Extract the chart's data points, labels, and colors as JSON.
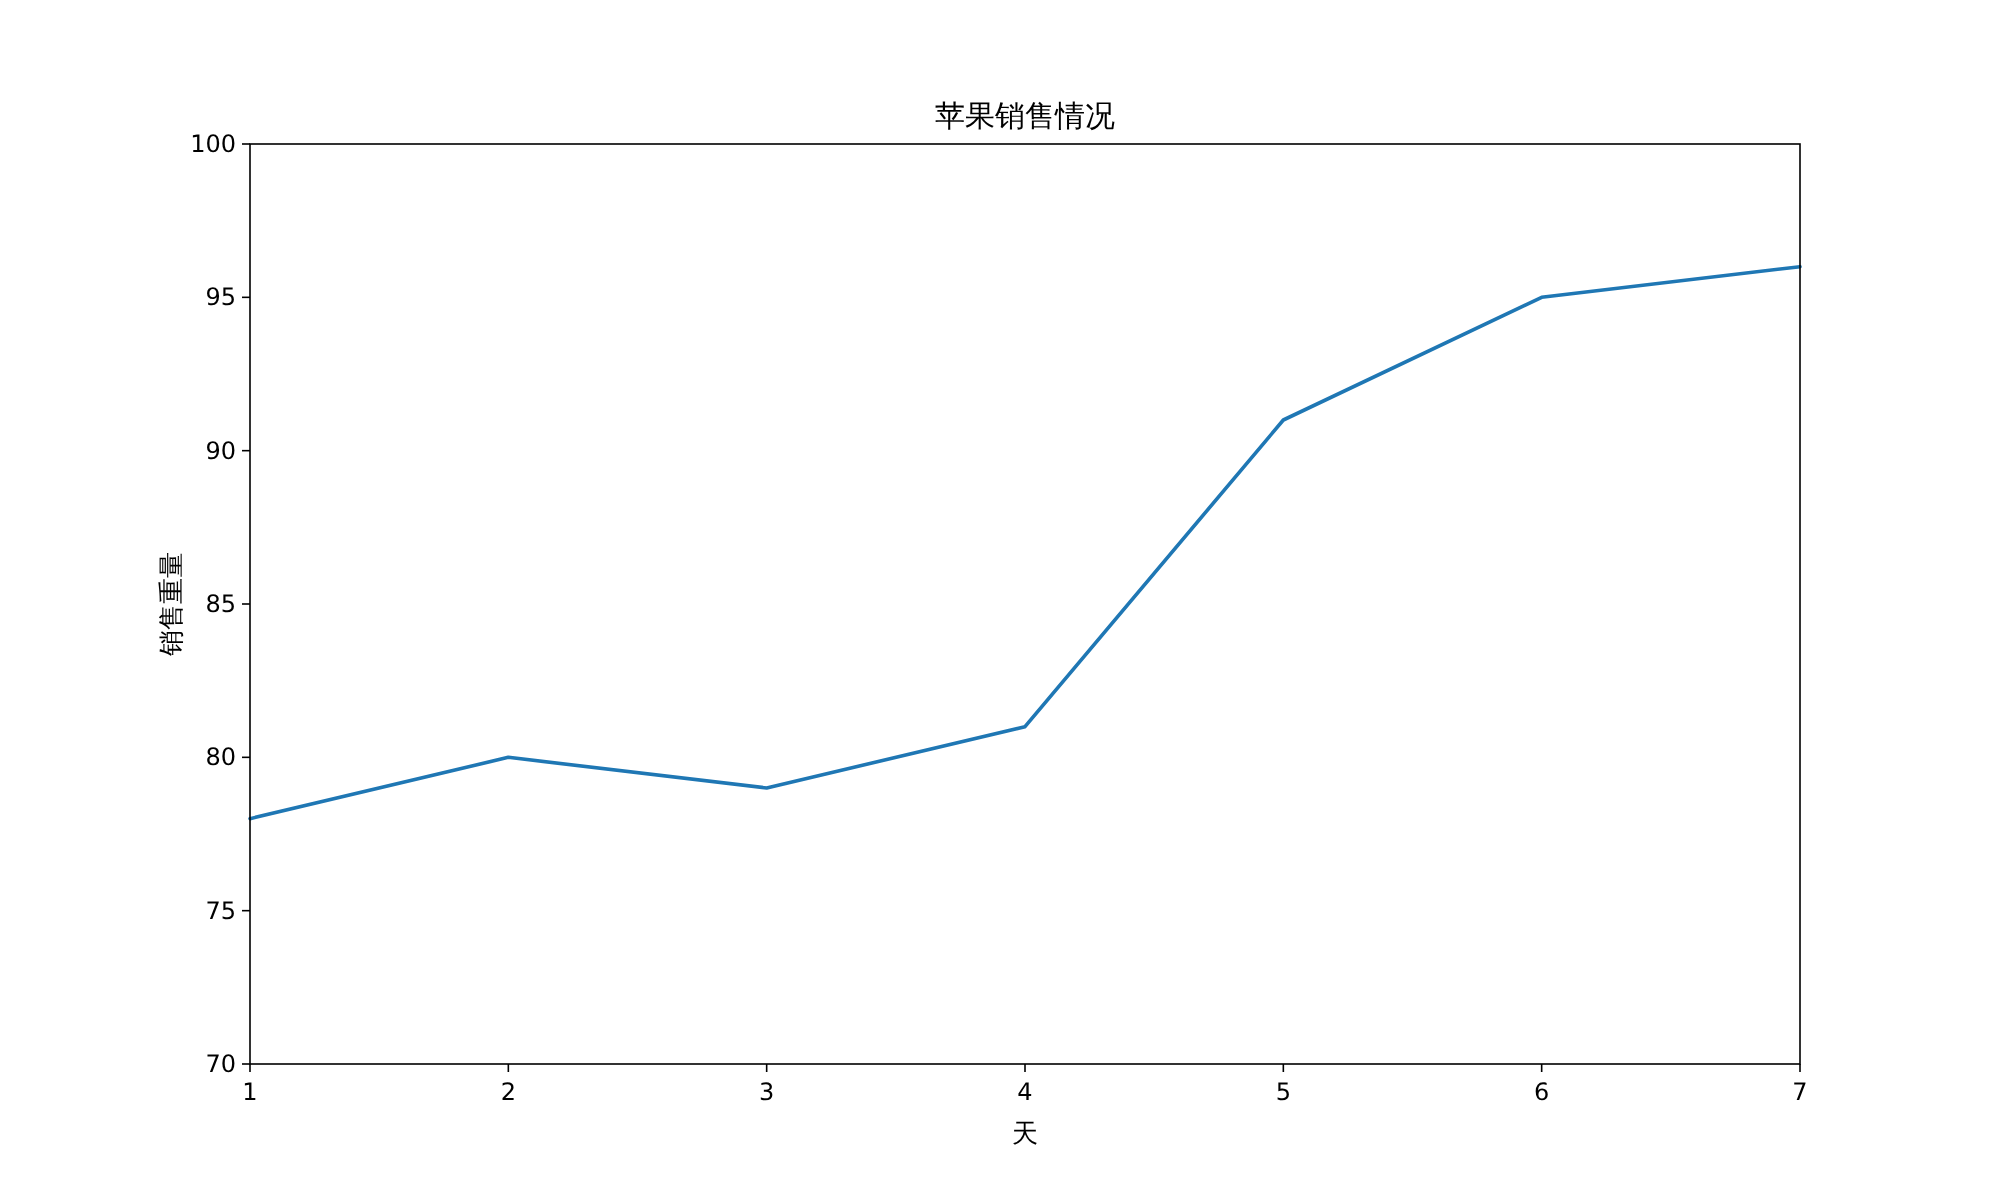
{
  "chart_data": {
    "type": "line",
    "title": "苹果销售情况",
    "xlabel": "天",
    "ylabel": "销售重量",
    "x": [
      1,
      2,
      3,
      4,
      5,
      6,
      7
    ],
    "series": [
      {
        "color": "#1f77b4",
        "values": [
          78,
          80,
          79,
          81,
          91,
          95,
          96
        ]
      }
    ],
    "xlim": [
      1,
      7
    ],
    "ylim": [
      70,
      100
    ],
    "xticks": [
      1,
      2,
      3,
      4,
      5,
      6,
      7
    ],
    "yticks": [
      70,
      75,
      80,
      85,
      90,
      95,
      100
    ],
    "grid": false,
    "marker": "none",
    "line_style": "solid"
  }
}
